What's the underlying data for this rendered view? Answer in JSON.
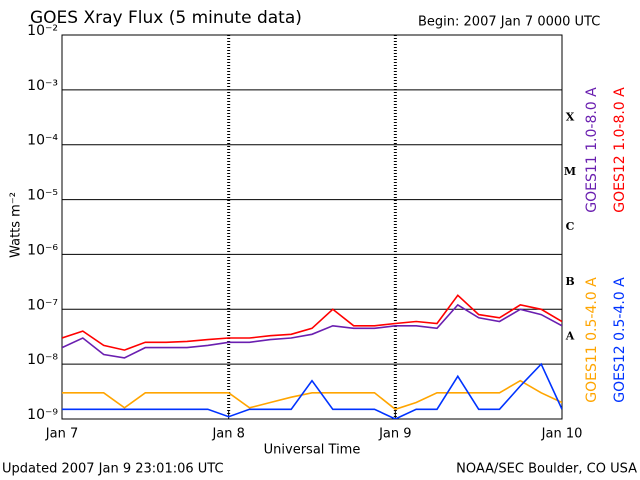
{
  "chart_data": {
    "type": "line",
    "title": "GOES Xray Flux (5 minute data)",
    "subtitle": "Begin:  2007 Jan 7 0000 UTC",
    "x_label": "Universal Time",
    "y_label": "Watts m⁻²",
    "footer_left": "Updated 2007 Jan  9 23:01:06 UTC",
    "footer_right": "NOAA/SEC Boulder, CO USA",
    "log_scale": true,
    "grid": true,
    "flare_classes": [
      "X",
      "M",
      "C",
      "B",
      "A"
    ],
    "xlim": [
      0,
      72
    ],
    "xticks": [
      {
        "value": 0,
        "label": "Jan 7"
      },
      {
        "value": 24,
        "label": "Jan 8"
      },
      {
        "value": 48,
        "label": "Jan 9"
      },
      {
        "value": 72,
        "label": "Jan 10"
      }
    ],
    "ylim": [
      1e-09,
      0.01
    ],
    "yticks": [
      {
        "value": 1e-09,
        "label": "10⁻⁹"
      },
      {
        "value": 1e-08,
        "label": "10⁻⁸"
      },
      {
        "value": 1e-07,
        "label": "10⁻⁷"
      },
      {
        "value": 1e-06,
        "label": "10⁻⁶"
      },
      {
        "value": 1e-05,
        "label": "10⁻⁵"
      },
      {
        "value": 0.0001,
        "label": "10⁻⁴"
      },
      {
        "value": 0.001,
        "label": "10⁻³"
      },
      {
        "value": 0.01,
        "label": "10⁻²"
      }
    ],
    "x": [
      0,
      3,
      6,
      9,
      12,
      15,
      18,
      21,
      24,
      27,
      30,
      33,
      36,
      39,
      42,
      45,
      48,
      51,
      54,
      57,
      60,
      63,
      66,
      69,
      72
    ],
    "series": [
      {
        "name": "GOES11 1.0-8.0 A",
        "color": "#6a1fb0",
        "values": [
          2e-08,
          3e-08,
          1.5e-08,
          1.3e-08,
          2e-08,
          2e-08,
          2e-08,
          2.2e-08,
          2.5e-08,
          2.5e-08,
          2.8e-08,
          3e-08,
          3.5e-08,
          5e-08,
          4.5e-08,
          4.5e-08,
          5e-08,
          5e-08,
          4.5e-08,
          1.2e-07,
          7e-08,
          6e-08,
          1e-07,
          8e-08,
          5e-08
        ]
      },
      {
        "name": "GOES12 1.0-8.0 A",
        "color": "#ff0000",
        "values": [
          3e-08,
          4e-08,
          2.2e-08,
          1.8e-08,
          2.5e-08,
          2.5e-08,
          2.6e-08,
          2.8e-08,
          3e-08,
          3e-08,
          3.3e-08,
          3.5e-08,
          4.5e-08,
          1e-07,
          5e-08,
          5e-08,
          5.5e-08,
          6e-08,
          5.5e-08,
          1.8e-07,
          8e-08,
          7e-08,
          1.2e-07,
          1e-07,
          6e-08
        ]
      },
      {
        "name": "GOES11 0.5-4.0 A",
        "color": "#ffa500",
        "values": [
          3e-09,
          3e-09,
          3e-09,
          1.6e-09,
          3e-09,
          3e-09,
          3e-09,
          3e-09,
          3e-09,
          1.6e-09,
          2e-09,
          2.5e-09,
          3e-09,
          3e-09,
          3e-09,
          3e-09,
          1.5e-09,
          2e-09,
          3e-09,
          3e-09,
          3e-09,
          3e-09,
          5e-09,
          3e-09,
          2e-09
        ]
      },
      {
        "name": "GOES12 0.5-4.0 A",
        "color": "#0033ff",
        "values": [
          1.5e-09,
          1.5e-09,
          1.5e-09,
          1.5e-09,
          1.5e-09,
          1.5e-09,
          1.5e-09,
          1.5e-09,
          1.1e-09,
          1.5e-09,
          1.5e-09,
          1.5e-09,
          5e-09,
          1.5e-09,
          1.5e-09,
          1.5e-09,
          1e-09,
          1.5e-09,
          1.5e-09,
          6e-09,
          1.5e-09,
          1.5e-09,
          4e-09,
          1e-08,
          1.5e-09
        ]
      }
    ]
  }
}
